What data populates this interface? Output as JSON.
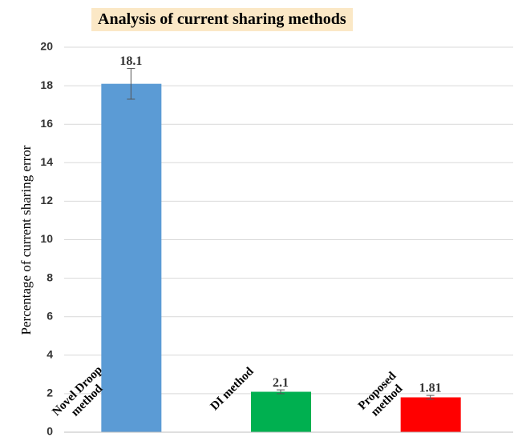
{
  "chart_data": {
    "type": "bar",
    "title": "Analysis of current sharing methods",
    "ylabel": "Percentage of current sharing error",
    "categories": [
      "Novel Droop method",
      "DI method",
      "Proposed method"
    ],
    "values": [
      18.1,
      2.1,
      1.81
    ],
    "errors": [
      0.8,
      0.1,
      0.1
    ],
    "colors": [
      "#5b9bd5",
      "#00b050",
      "#ff0000"
    ],
    "ylim": [
      0,
      20
    ],
    "yticks": [
      0,
      2,
      4,
      6,
      8,
      10,
      12,
      14,
      16,
      18,
      20
    ],
    "grid": true
  }
}
